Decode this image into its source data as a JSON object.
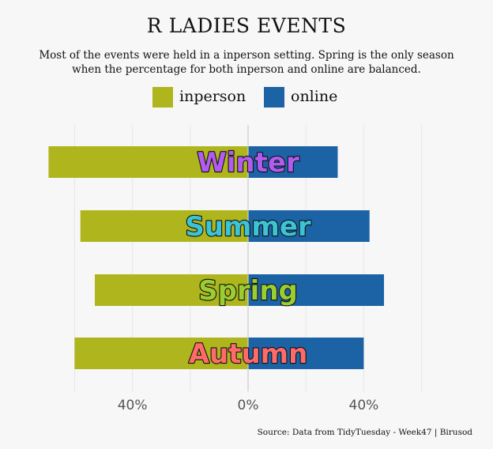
{
  "chart_data": {
    "type": "bar",
    "orientation": "diverging-horizontal",
    "title": "R LADIES EVENTS",
    "subtitle": "Most of the events were held in a inperson setting. Spring is the only season when the percentage for both inperson and online are balanced.",
    "caption": "Source: Data from TidyTuesday - Week47 | Birusod",
    "categories": [
      "Winter",
      "Summer",
      "Spring",
      "Autumn"
    ],
    "category_colors": [
      "#b05cf0",
      "#3cc4d4",
      "#9acd32",
      "#ff6b6b"
    ],
    "series": [
      {
        "name": "inperson",
        "color": "#afb51c",
        "values": [
          69,
          58,
          53,
          60
        ]
      },
      {
        "name": "online",
        "color": "#1c63a6",
        "values": [
          31,
          42,
          47,
          40
        ]
      }
    ],
    "xticks": [
      "40%",
      "0%",
      "40%"
    ],
    "xtick_values": [
      -40,
      0,
      40
    ],
    "xlim": [
      -78,
      78
    ],
    "grid": true,
    "legend_position": "top"
  }
}
